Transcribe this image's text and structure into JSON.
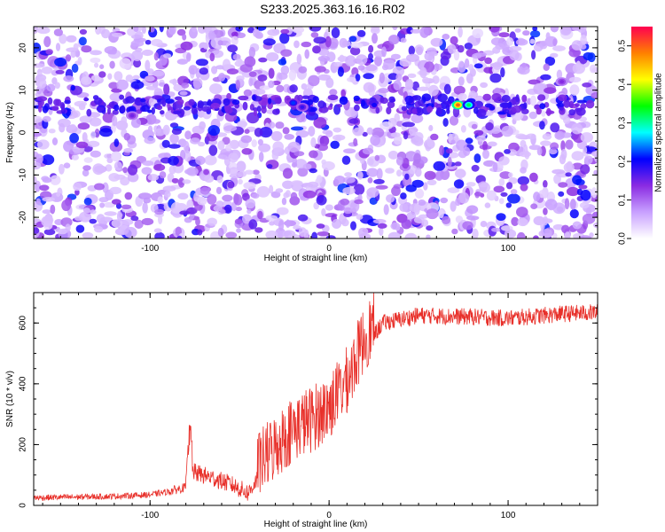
{
  "title": "S233.2025.363.16.16.R02",
  "chart_data": [
    {
      "type": "heatmap",
      "xlabel": "Height of straight line (km)",
      "ylabel": "Frequency (Hz)",
      "xlim": [
        -165,
        150
      ],
      "ylim": [
        -25,
        25
      ],
      "xticks": [
        -100,
        0,
        100
      ],
      "yticks": [
        -20,
        -10,
        0,
        10,
        20
      ],
      "colorbar": {
        "label": "Normalized spectral amplitude",
        "range": [
          0.0,
          0.55
        ],
        "ticks": [
          "0.0",
          "0.1",
          "0.2",
          "0.3",
          "0.4",
          "0.5"
        ],
        "colors": [
          "#ffffff",
          "#c8a0ff",
          "#8a2be2",
          "#0000ff",
          "#00ffff",
          "#00ff00",
          "#ffff00",
          "#ff8000",
          "#ff0050"
        ]
      },
      "features": [
        {
          "x": -20,
          "y": 7,
          "amp": 0.22
        },
        {
          "x": -15,
          "y": 6,
          "amp": 0.18
        },
        {
          "x": 72,
          "y": 6.5,
          "amp": 0.5
        },
        {
          "x": 78,
          "y": 6.5,
          "amp": 0.32
        },
        {
          "x": -110,
          "y": 4,
          "amp": 0.15
        },
        {
          "x": 130,
          "y": 12,
          "amp": 0.14
        }
      ]
    },
    {
      "type": "line",
      "xlabel": "Height of straight line (km)",
      "ylabel": "SNR (10 * v/v)",
      "xlim": [
        -165,
        150
      ],
      "ylim": [
        0,
        700
      ],
      "xticks": [
        -100,
        0,
        100
      ],
      "yticks": [
        0,
        200,
        400,
        600
      ],
      "color": "#e8302a",
      "series_profile": [
        {
          "x": -165,
          "y": 25
        },
        {
          "x": -120,
          "y": 30
        },
        {
          "x": -100,
          "y": 35
        },
        {
          "x": -90,
          "y": 45
        },
        {
          "x": -80,
          "y": 60
        },
        {
          "x": -78,
          "y": 220
        },
        {
          "x": -76,
          "y": 110
        },
        {
          "x": -65,
          "y": 90
        },
        {
          "x": -55,
          "y": 70
        },
        {
          "x": -45,
          "y": 40
        },
        {
          "x": -38,
          "y": 110
        },
        {
          "x": -30,
          "y": 160
        },
        {
          "x": -20,
          "y": 220
        },
        {
          "x": -10,
          "y": 250
        },
        {
          "x": 0,
          "y": 290
        },
        {
          "x": 10,
          "y": 380
        },
        {
          "x": 20,
          "y": 520
        },
        {
          "x": 30,
          "y": 600
        },
        {
          "x": 50,
          "y": 625
        },
        {
          "x": 80,
          "y": 620
        },
        {
          "x": 100,
          "y": 615
        },
        {
          "x": 130,
          "y": 630
        },
        {
          "x": 150,
          "y": 635
        }
      ]
    }
  ]
}
